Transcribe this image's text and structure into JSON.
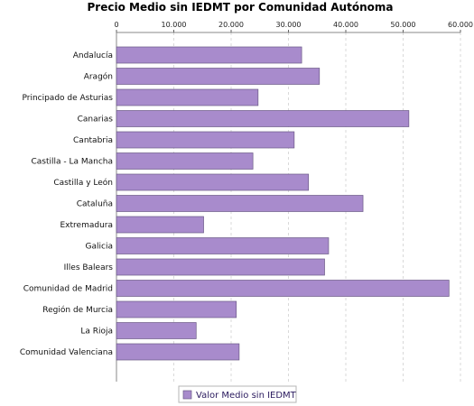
{
  "chart_data": {
    "type": "bar",
    "orientation": "horizontal",
    "title": "Precio Medio sin IEDMT por Comunidad Autónoma",
    "categories": [
      "Andalucía",
      "Aragón",
      "Principado de Asturias",
      "Canarias",
      "Cantabria",
      "Castilla - La Mancha",
      "Castilla y León",
      "Cataluña",
      "Extremadura",
      "Galicia",
      "Illes Balears",
      "Comunidad de Madrid",
      "Región de Murcia",
      "La Rioja",
      "Comunidad Valenciana"
    ],
    "series": [
      {
        "name": "Valor Medio sin IEDMT",
        "values": [
          32300,
          35400,
          24700,
          51000,
          31000,
          23800,
          33500,
          43000,
          15200,
          37000,
          36300,
          58000,
          20900,
          13900,
          21400
        ]
      }
    ],
    "xlim": [
      0,
      60000
    ],
    "xticks": [
      "0",
      "10.000",
      "20.000",
      "30.000",
      "40.000",
      "50.000",
      "60.000"
    ],
    "axis_position": "top",
    "grid": true,
    "legend_position": "bottom",
    "colors": {
      "bar": "#a88bcc",
      "bar_stroke": "#6b5a86",
      "legend_text": "#2a1a5e"
    }
  }
}
